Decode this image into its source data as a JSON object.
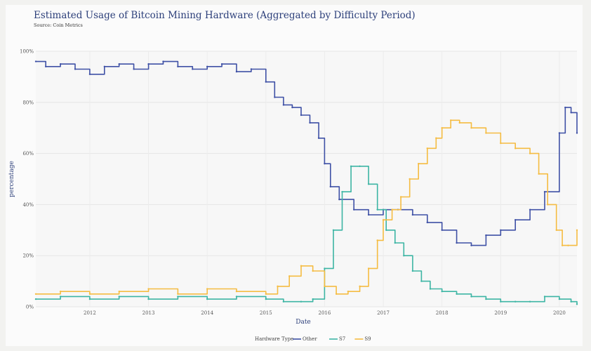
{
  "chart_data": {
    "type": "line",
    "title": "Estimated Usage of Bitcoin Mining Hardware  (Aggregated by Difficulty Period)",
    "subtitle": "Source: Coin Metrics",
    "xlabel": "Date",
    "ylabel": "percentage",
    "xlim": [
      2011.08,
      2020.3
    ],
    "ylim": [
      0,
      100
    ],
    "x_ticks": [
      2012,
      2013,
      2014,
      2015,
      2016,
      2017,
      2018,
      2019,
      2020
    ],
    "y_ticks": [
      0,
      20,
      40,
      60,
      80,
      100
    ],
    "y_tick_labels": [
      "0%",
      "20%",
      "40%",
      "60%",
      "80%",
      "100%"
    ],
    "grid": true,
    "line_shape": "step",
    "legend": {
      "title": "Hardware Type",
      "placement": "bottom-center"
    },
    "series": [
      {
        "name": "Other",
        "color": "#3f51a6",
        "x": [
          2011.08,
          2011.25,
          2011.5,
          2011.75,
          2012.0,
          2012.25,
          2012.5,
          2012.75,
          2013.0,
          2013.25,
          2013.5,
          2013.75,
          2014.0,
          2014.25,
          2014.5,
          2014.75,
          2015.0,
          2015.15,
          2015.3,
          2015.45,
          2015.6,
          2015.75,
          2015.9,
          2016.0,
          2016.1,
          2016.25,
          2016.5,
          2016.75,
          2017.0,
          2017.25,
          2017.5,
          2017.75,
          2018.0,
          2018.25,
          2018.5,
          2018.75,
          2019.0,
          2019.25,
          2019.5,
          2019.75,
          2020.0,
          2020.1,
          2020.2,
          2020.3
        ],
        "y": [
          96,
          94,
          95,
          93,
          91,
          94,
          95,
          93,
          95,
          96,
          94,
          93,
          94,
          95,
          92,
          93,
          88,
          82,
          79,
          78,
          75,
          72,
          66,
          56,
          47,
          42,
          38,
          36,
          38,
          38,
          36,
          33,
          30,
          25,
          24,
          28,
          30,
          34,
          38,
          45,
          68,
          78,
          76,
          68
        ]
      },
      {
        "name": "S7",
        "color": "#3db5a4",
        "x": [
          2011.08,
          2011.5,
          2012.0,
          2012.5,
          2013.0,
          2013.5,
          2014.0,
          2014.5,
          2015.0,
          2015.3,
          2015.6,
          2015.8,
          2016.0,
          2016.15,
          2016.3,
          2016.45,
          2016.6,
          2016.75,
          2016.9,
          2017.05,
          2017.2,
          2017.35,
          2017.5,
          2017.65,
          2017.8,
          2018.0,
          2018.25,
          2018.5,
          2018.75,
          2019.0,
          2019.25,
          2019.5,
          2019.75,
          2020.0,
          2020.2,
          2020.3
        ],
        "y": [
          3,
          4,
          3,
          4,
          3,
          4,
          3,
          4,
          3,
          2,
          2,
          3,
          15,
          30,
          45,
          55,
          55,
          48,
          38,
          30,
          25,
          20,
          14,
          10,
          7,
          6,
          5,
          4,
          3,
          2,
          2,
          2,
          4,
          3,
          2,
          1
        ]
      },
      {
        "name": "S9",
        "color": "#f5bc42",
        "x": [
          2011.08,
          2011.5,
          2012.0,
          2012.5,
          2013.0,
          2013.5,
          2014.0,
          2014.5,
          2015.0,
          2015.2,
          2015.4,
          2015.6,
          2015.8,
          2016.0,
          2016.2,
          2016.4,
          2016.6,
          2016.75,
          2016.9,
          2017.0,
          2017.15,
          2017.3,
          2017.45,
          2017.6,
          2017.75,
          2017.9,
          2018.0,
          2018.15,
          2018.3,
          2018.5,
          2018.75,
          2019.0,
          2019.25,
          2019.5,
          2019.65,
          2019.8,
          2019.95,
          2020.05,
          2020.15,
          2020.3
        ],
        "y": [
          5,
          6,
          5,
          6,
          7,
          5,
          7,
          6,
          5,
          8,
          12,
          16,
          14,
          8,
          5,
          6,
          8,
          15,
          26,
          34,
          38,
          43,
          50,
          56,
          62,
          66,
          70,
          73,
          72,
          70,
          68,
          64,
          62,
          60,
          52,
          40,
          30,
          24,
          24,
          30
        ]
      }
    ]
  }
}
